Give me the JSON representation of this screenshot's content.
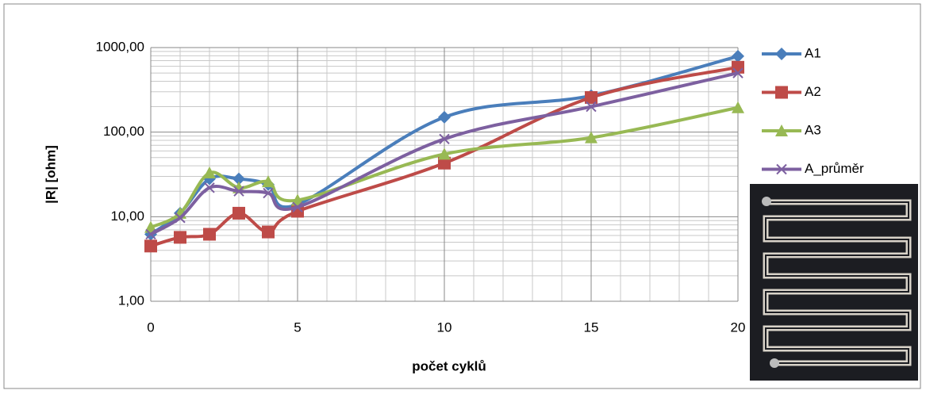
{
  "chart_data": {
    "type": "line",
    "x_label": "počet cyklů",
    "y_label": "|R| [ohm]",
    "x": [
      0,
      1,
      2,
      3,
      4,
      5,
      10,
      15,
      20
    ],
    "series": [
      {
        "name": "A1",
        "color": "#4a7ebb",
        "marker": "diamond",
        "values": [
          6.2,
          11,
          28,
          28,
          24,
          14,
          150,
          270,
          790
        ]
      },
      {
        "name": "A2",
        "color": "#be4b48",
        "marker": "square",
        "values": [
          4.5,
          5.7,
          6.2,
          11,
          6.6,
          11.6,
          43,
          257,
          585
        ]
      },
      {
        "name": "A3",
        "color": "#98b954",
        "marker": "triangle",
        "values": [
          7.5,
          11,
          33,
          22,
          26,
          15.7,
          55,
          86,
          195
        ]
      },
      {
        "name": "A_průměr",
        "color": "#7d60a0",
        "marker": "x",
        "values": [
          6.2,
          9.7,
          22,
          20,
          19,
          13,
          83,
          200,
          500
        ]
      }
    ],
    "xlim": [
      0,
      20
    ],
    "xticks": [
      0,
      5,
      10,
      15,
      20
    ],
    "ylim": [
      1,
      1000
    ],
    "yticks": [
      {
        "value": 1,
        "label": "1,00"
      },
      {
        "value": 10,
        "label": "10,00"
      },
      {
        "value": 100,
        "label": "100,00"
      },
      {
        "value": 1000,
        "label": "1000,00"
      }
    ],
    "log_scale_y": true,
    "grid": true,
    "minor_grid": true,
    "legend": "right"
  }
}
